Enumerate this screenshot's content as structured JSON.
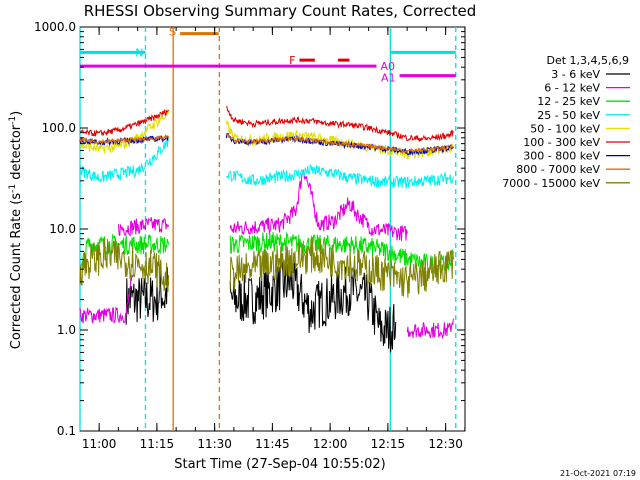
{
  "chart_data": {
    "type": "line",
    "title": "RHESSI Observing Summary Count Rates, Corrected",
    "xlabel": "Start Time (27-Sep-04 10:55:02)",
    "ylabel_main": "Corrected Count Rate (s",
    "ylabel_sup1": "-1",
    "ylabel_mid": " detector",
    "ylabel_sup2": "-1",
    "ylabel_end": ")",
    "yscale": "log",
    "ylim": [
      0.1,
      1000
    ],
    "xlim_min": [
      0,
      100
    ],
    "ytick_labels": [
      "0.1",
      "1.0",
      "10.0",
      "100.0",
      "1000.0"
    ],
    "ytick_values": [
      0.1,
      1,
      10,
      100,
      1000
    ],
    "xtick_labels": [
      "11:00",
      "11:15",
      "11:30",
      "11:45",
      "12:00",
      "12:15",
      "12:30"
    ],
    "xtick_values": [
      4.97,
      19.97,
      34.97,
      49.97,
      64.97,
      79.97,
      94.97
    ],
    "legend_title": "Det 1,3,4,5,6,9",
    "legend_position": "right",
    "timestamp": "21-Oct-2021 07:19",
    "flag_labels": {
      "N": "N",
      "S": "S",
      "F": "F",
      "A0": "A0",
      "A1": "A1"
    },
    "vertical_lines": [
      {
        "x": 0,
        "color": "#00e0e0",
        "style": "solid"
      },
      {
        "x": 17.0,
        "color": "#00e0e0",
        "style": "dashed"
      },
      {
        "x": 24.2,
        "color": "#e07000",
        "style": "solid"
      },
      {
        "x": 36.2,
        "color": "#e07000",
        "style": "dashed"
      },
      {
        "x": 80.6,
        "color": "#00e0e0",
        "style": "solid"
      },
      {
        "x": 97.6,
        "color": "#00e0e0",
        "style": "dashed"
      }
    ],
    "series": [
      {
        "name": "3 - 6 keV",
        "color": "#000000",
        "segments": [
          [
            [
              12,
              2
            ],
            [
              17,
              2
            ],
            [
              20,
              2
            ],
            [
              21,
              2.5
            ],
            [
              22,
              2
            ],
            [
              23,
              3
            ]
          ],
          [
            [
              39,
              2
            ],
            [
              45,
              2
            ],
            [
              50,
              2.5
            ],
            [
              55,
              3
            ],
            [
              58,
              2
            ],
            [
              60,
              1.5
            ],
            [
              62,
              1.8
            ],
            [
              65,
              2
            ],
            [
              70,
              2.5
            ],
            [
              75,
              2
            ],
            [
              78,
              1
            ],
            [
              80,
              1
            ],
            [
              82,
              1.2
            ]
          ]
        ],
        "noise": 0.25
      },
      {
        "name": "6 - 12 keV",
        "color": "#e000e0",
        "segments": [
          [
            [
              0,
              1.4
            ],
            [
              8,
              1.4
            ],
            [
              12,
              1.4
            ],
            [
              13,
              2.5
            ],
            [
              14,
              3.5
            ]
          ],
          [
            [
              10,
              10
            ],
            [
              18,
              11
            ],
            [
              23,
              11
            ]
          ],
          [
            [
              39,
              10
            ],
            [
              45,
              10.5
            ],
            [
              52,
              11
            ],
            [
              56,
              15
            ],
            [
              58,
              40
            ],
            [
              60,
              22
            ],
            [
              62,
              11
            ],
            [
              66,
              12
            ],
            [
              70,
              18
            ],
            [
              72,
              14
            ],
            [
              76,
              10
            ],
            [
              80,
              9.5
            ],
            [
              85,
              9
            ]
          ],
          [
            [
              85,
              1
            ],
            [
              96,
              1
            ],
            [
              97,
              1.3
            ]
          ]
        ],
        "noise": 0.08
      },
      {
        "name": "12 - 25 keV",
        "color": "#00e000",
        "segments": [
          [
            [
              0,
              3.5
            ],
            [
              2,
              7
            ],
            [
              6,
              7
            ],
            [
              12,
              7
            ],
            [
              18,
              7
            ],
            [
              23,
              7
            ]
          ],
          [
            [
              39,
              7
            ],
            [
              50,
              7.5
            ],
            [
              60,
              7
            ],
            [
              70,
              7
            ],
            [
              76,
              6.5
            ],
            [
              80,
              6
            ],
            [
              85,
              5
            ],
            [
              90,
              4.5
            ],
            [
              96,
              4.5
            ],
            [
              97,
              6
            ]
          ]
        ],
        "noise": 0.1
      },
      {
        "name": "25 - 50 keV",
        "color": "#00f0f0",
        "segments": [
          [
            [
              0,
              38
            ],
            [
              5,
              32
            ],
            [
              10,
              35
            ],
            [
              15,
              38
            ],
            [
              20,
              55
            ],
            [
              23,
              75
            ]
          ],
          [
            [
              38,
              35
            ],
            [
              45,
              30
            ],
            [
              50,
              32
            ],
            [
              55,
              34
            ],
            [
              60,
              38
            ],
            [
              65,
              36
            ],
            [
              70,
              32
            ],
            [
              75,
              30
            ],
            [
              80,
              29
            ],
            [
              85,
              29
            ],
            [
              90,
              30
            ],
            [
              96,
              32
            ],
            [
              97,
              33
            ]
          ]
        ],
        "noise": 0.06
      },
      {
        "name": "50 - 100 keV",
        "color": "#e0e000",
        "segments": [
          [
            [
              0,
              68
            ],
            [
              5,
              62
            ],
            [
              10,
              65
            ],
            [
              15,
              80
            ],
            [
              18,
              100
            ],
            [
              23,
              140
            ]
          ],
          [
            [
              38,
              110
            ],
            [
              40,
              80
            ],
            [
              45,
              75
            ],
            [
              50,
              80
            ],
            [
              55,
              85
            ],
            [
              60,
              82
            ],
            [
              65,
              75
            ],
            [
              70,
              70
            ],
            [
              75,
              65
            ],
            [
              80,
              60
            ],
            [
              85,
              55
            ],
            [
              90,
              58
            ],
            [
              96,
              62
            ],
            [
              97,
              65
            ]
          ]
        ],
        "noise": 0.05
      },
      {
        "name": "100 - 300 keV",
        "color": "#e00000",
        "segments": [
          [
            [
              0,
              90
            ],
            [
              5,
              88
            ],
            [
              10,
              95
            ],
            [
              15,
              110
            ],
            [
              20,
              130
            ],
            [
              23,
              150
            ]
          ],
          [
            [
              38,
              160
            ],
            [
              40,
              120
            ],
            [
              45,
              110
            ],
            [
              50,
              115
            ],
            [
              55,
              120
            ],
            [
              60,
              118
            ],
            [
              65,
              110
            ],
            [
              70,
              108
            ],
            [
              75,
              100
            ],
            [
              80,
              90
            ],
            [
              85,
              80
            ],
            [
              90,
              78
            ],
            [
              96,
              85
            ],
            [
              97,
              90
            ]
          ]
        ],
        "noise": 0.03
      },
      {
        "name": "300 - 800 keV",
        "color": "#0000c0",
        "segments": [
          [
            [
              0,
              75
            ],
            [
              5,
              72
            ],
            [
              10,
              74
            ],
            [
              15,
              76
            ],
            [
              20,
              78
            ],
            [
              23,
              80
            ]
          ],
          [
            [
              38,
              85
            ],
            [
              40,
              75
            ],
            [
              45,
              72
            ],
            [
              50,
              75
            ],
            [
              55,
              78
            ],
            [
              60,
              75
            ],
            [
              65,
              70
            ],
            [
              70,
              68
            ],
            [
              75,
              65
            ],
            [
              80,
              62
            ],
            [
              85,
              58
            ],
            [
              90,
              60
            ],
            [
              96,
              63
            ],
            [
              97,
              65
            ]
          ]
        ],
        "noise": 0.03
      },
      {
        "name": "800 - 7000 keV",
        "color": "#e07000",
        "segments": [
          [
            [
              0,
              76
            ],
            [
              5,
              73
            ],
            [
              10,
              75
            ],
            [
              15,
              77
            ],
            [
              20,
              79
            ],
            [
              23,
              81
            ]
          ],
          [
            [
              38,
              86
            ],
            [
              40,
              76
            ],
            [
              45,
              73
            ],
            [
              50,
              76
            ],
            [
              55,
              79
            ],
            [
              60,
              76
            ],
            [
              65,
              71
            ],
            [
              70,
              69
            ],
            [
              75,
              66
            ],
            [
              80,
              63
            ],
            [
              85,
              59
            ],
            [
              90,
              61
            ],
            [
              96,
              64
            ],
            [
              97,
              66
            ]
          ]
        ],
        "noise": 0.02
      },
      {
        "name": "7000 - 15000 keV",
        "color": "#808000",
        "segments": [
          [
            [
              0,
              4
            ],
            [
              3,
              5
            ],
            [
              8,
              5.5
            ],
            [
              12,
              5
            ],
            [
              16,
              4.5
            ],
            [
              20,
              4
            ],
            [
              22,
              3
            ],
            [
              23,
              3.5
            ]
          ],
          [
            [
              39,
              3.5
            ],
            [
              45,
              4
            ],
            [
              50,
              4.5
            ],
            [
              55,
              5
            ],
            [
              60,
              5.5
            ],
            [
              65,
              5
            ],
            [
              70,
              4.5
            ],
            [
              75,
              4
            ],
            [
              80,
              3.5
            ],
            [
              85,
              3
            ],
            [
              90,
              3.5
            ],
            [
              96,
              4.5
            ],
            [
              97,
              5
            ]
          ]
        ],
        "noise": 0.18
      }
    ],
    "flag_bars": [
      {
        "label": "N",
        "color": "#00e0e0",
        "y_level": 560,
        "ranges": [
          [
            0,
            17
          ],
          [
            80.6,
            97.6
          ]
        ]
      },
      {
        "label": "S",
        "color": "#e07000",
        "y_level": 860,
        "ranges": [
          [
            26,
            36
          ]
        ]
      },
      {
        "label": "F",
        "color": "#e00000",
        "y_level": 470,
        "ranges": [
          [
            57,
            61
          ],
          [
            67,
            70
          ]
        ]
      },
      {
        "label": "A0",
        "color": "#e000e0",
        "y_level": 410,
        "ranges": [
          [
            0,
            77
          ]
        ]
      },
      {
        "label": "A1",
        "color": "#e000e0",
        "y_level": 330,
        "ranges": [
          [
            83,
            97.6
          ]
        ]
      }
    ]
  }
}
